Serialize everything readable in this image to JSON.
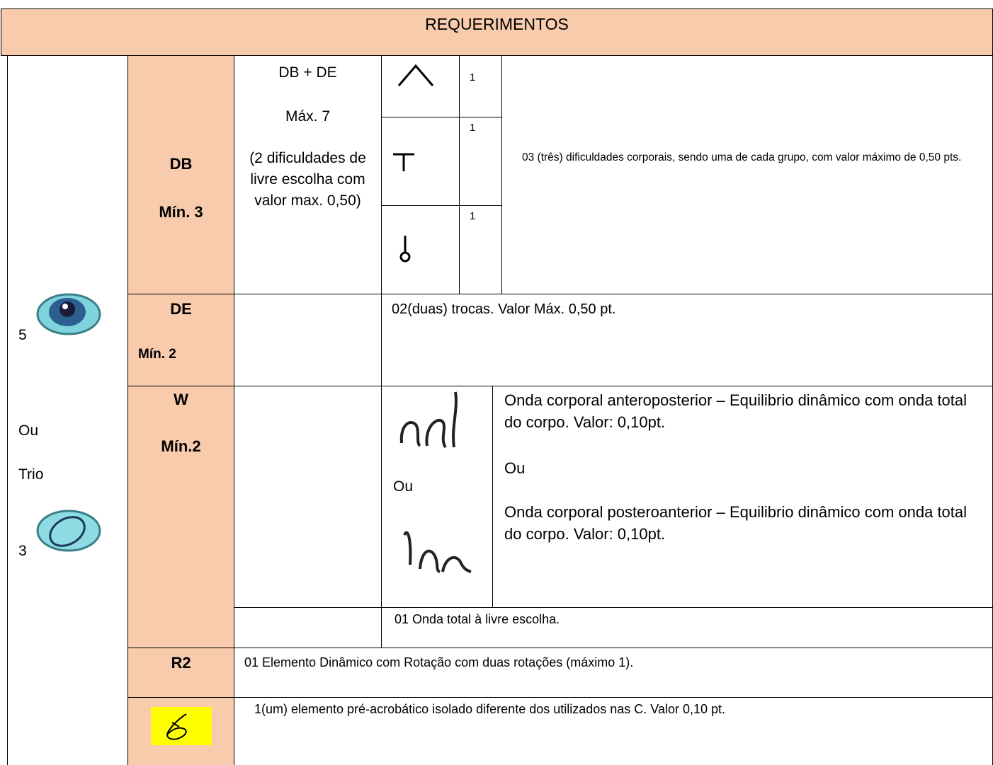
{
  "header": {
    "title": "REQUERIMENTOS"
  },
  "left": {
    "group_count": "5",
    "or": "Ou",
    "trio": "Trio",
    "trio_count": "3"
  },
  "db": {
    "label": "DB",
    "min": "Mín. 3",
    "combo": [
      "DB + DE",
      "Máx. 7",
      "(2 dificuldades de livre escolha com valor max. 0,50)"
    ],
    "groups": [
      "1",
      "1",
      "1"
    ],
    "description": "03 (três) dificuldades corporais, sendo uma de cada grupo, com valor máximo de 0,50 pts."
  },
  "de": {
    "label": "DE",
    "min": "Mín. 2",
    "description": "02(duas) trocas. Valor Máx. 0,50 pt."
  },
  "w": {
    "label": "W",
    "min": "Mín.2",
    "or": "Ou",
    "description": [
      "Onda corporal anteroposterior – Equilibrio dinâmico com onda total do corpo. Valor: 0,10pt.",
      "Ou",
      "Onda corporal posteroanterior – Equilibrio dinâmico com onda total do corpo. Valor: 0,10pt."
    ],
    "extra": "01 Onda total à livre escolha."
  },
  "r2": {
    "label": "R2",
    "description": "01 Elemento Dinâmico com Rotação com duas rotações (máximo 1)."
  },
  "acro": {
    "description": "1(um) elemento pré-acrobático isolado diferente dos utilizados nas C. Valor 0,10 pt."
  }
}
